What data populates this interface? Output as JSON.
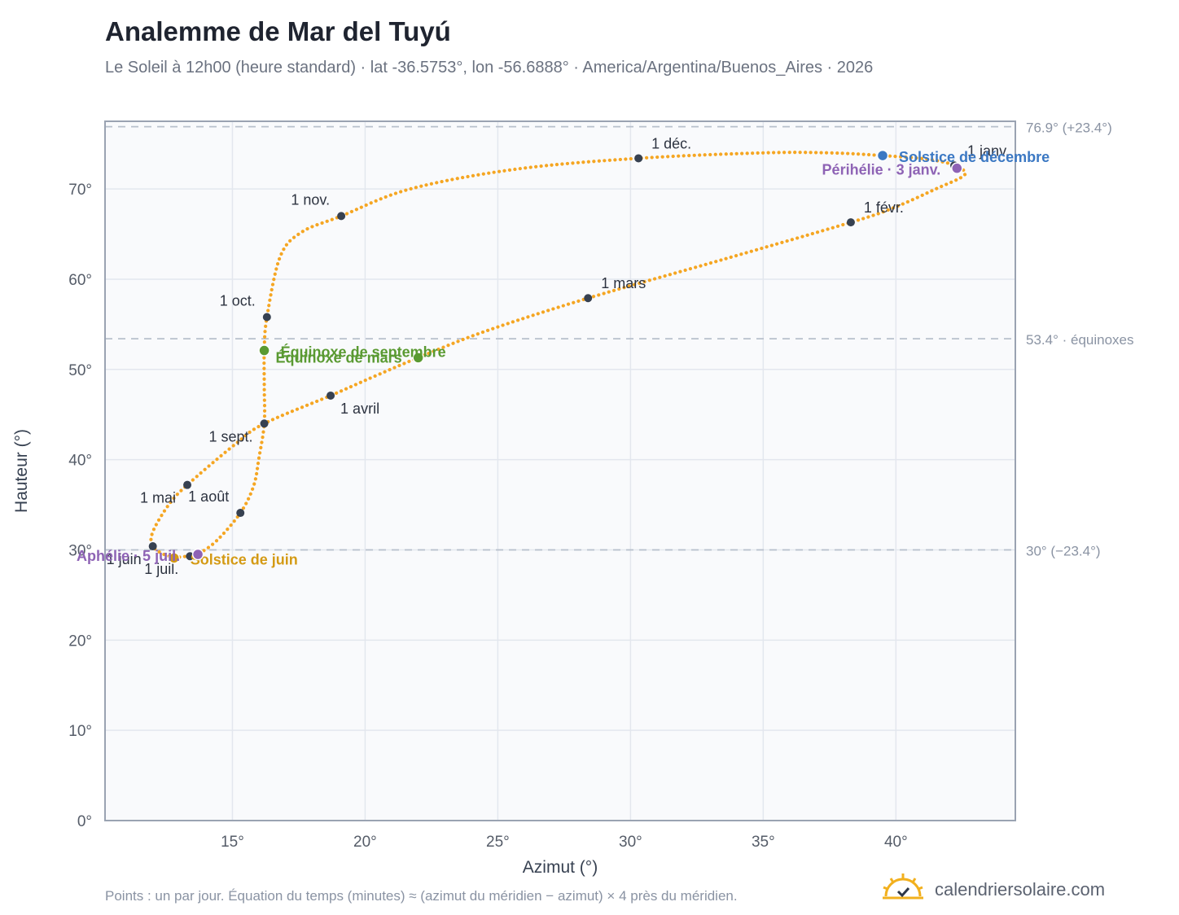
{
  "header": {
    "title": "Analemme de Mar del Tuyú",
    "subtitle": "Le Soleil à 12h00 (heure standard) · lat -36.5753°, lon -56.6888° · America/Argentina/Buenos_Aires · 2026"
  },
  "footer": {
    "note": "Points : un par jour. Équation du temps (minutes) ≈ (azimut du méridien − azimut) × 4 près du méridien.",
    "brand": "calendriersolaire.com"
  },
  "colors": {
    "curve": "#f5a623",
    "month_marker": "#374151",
    "equinox": "#5a9a32",
    "june_solstice": "#d49a14",
    "december_solstice": "#3b78c3",
    "apsis": "#8e63b5",
    "grid": "#e3e7ee",
    "plot_bg": "#f9fafc",
    "frame": "#9aa3b2",
    "reference_line": "#b8c0cc"
  },
  "chart_data": {
    "type": "scatter",
    "title": "Analemme de Mar del Tuyú",
    "xlabel": "Azimut (°)",
    "ylabel": "Hauteur (°)",
    "xlim": [
      10.2,
      44.5
    ],
    "ylim": [
      0,
      77.5
    ],
    "x_ticks": [
      {
        "value": 15,
        "label": "15°"
      },
      {
        "value": 20,
        "label": "20°"
      },
      {
        "value": 25,
        "label": "25°"
      },
      {
        "value": 30,
        "label": "30°"
      },
      {
        "value": 35,
        "label": "35°"
      },
      {
        "value": 40,
        "label": "40°"
      }
    ],
    "y_ticks": [
      {
        "value": 0,
        "label": "0°"
      },
      {
        "value": 10,
        "label": "10°"
      },
      {
        "value": 20,
        "label": "20°"
      },
      {
        "value": 30,
        "label": "30°"
      },
      {
        "value": 40,
        "label": "40°"
      },
      {
        "value": 50,
        "label": "50°"
      },
      {
        "value": 60,
        "label": "60°"
      },
      {
        "value": 70,
        "label": "70°"
      }
    ],
    "grid": true,
    "reference_lines": [
      {
        "y": 76.9,
        "label": "76.9° (+23.4°)"
      },
      {
        "y": 53.4,
        "label": "53.4° · équinoxes"
      },
      {
        "y": 30.0,
        "label": "30° (−23.4°)"
      }
    ],
    "series_path": [
      {
        "x": 42.2,
        "y": 72.7
      },
      {
        "x": 42.6,
        "y": 71.6
      },
      {
        "x": 41.5,
        "y": 70.0
      },
      {
        "x": 39.9,
        "y": 67.9
      },
      {
        "x": 38.3,
        "y": 66.3
      },
      {
        "x": 33.5,
        "y": 62.2
      },
      {
        "x": 28.4,
        "y": 57.9
      },
      {
        "x": 24.5,
        "y": 54.2
      },
      {
        "x": 22.0,
        "y": 51.3
      },
      {
        "x": 20.4,
        "y": 49.3
      },
      {
        "x": 18.7,
        "y": 47.1
      },
      {
        "x": 16.2,
        "y": 44.0
      },
      {
        "x": 15.1,
        "y": 41.7
      },
      {
        "x": 13.3,
        "y": 37.2
      },
      {
        "x": 12.6,
        "y": 35.0
      },
      {
        "x": 12.0,
        "y": 32.0
      },
      {
        "x": 12.0,
        "y": 30.4
      },
      {
        "x": 12.5,
        "y": 29.4
      },
      {
        "x": 13.0,
        "y": 29.2
      },
      {
        "x": 13.3,
        "y": 29.3
      },
      {
        "x": 13.6,
        "y": 29.3
      },
      {
        "x": 13.7,
        "y": 29.5
      },
      {
        "x": 14.4,
        "y": 31.0
      },
      {
        "x": 15.3,
        "y": 34.1
      },
      {
        "x": 15.8,
        "y": 37.1
      },
      {
        "x": 16.0,
        "y": 40.2
      },
      {
        "x": 16.2,
        "y": 44.0
      },
      {
        "x": 16.2,
        "y": 48.1
      },
      {
        "x": 16.2,
        "y": 52.1
      },
      {
        "x": 16.3,
        "y": 55.8
      },
      {
        "x": 16.8,
        "y": 62.5
      },
      {
        "x": 17.6,
        "y": 65.2
      },
      {
        "x": 19.1,
        "y": 67.0
      },
      {
        "x": 21.7,
        "y": 70.0
      },
      {
        "x": 25.7,
        "y": 72.2
      },
      {
        "x": 30.3,
        "y": 73.4
      },
      {
        "x": 35.0,
        "y": 74.0
      },
      {
        "x": 37.5,
        "y": 74.0
      },
      {
        "x": 39.5,
        "y": 73.7
      },
      {
        "x": 41.2,
        "y": 73.3
      },
      {
        "x": 42.2,
        "y": 72.7
      }
    ],
    "month_markers": [
      {
        "label": "1 janv.",
        "x": 42.2,
        "y": 72.6,
        "pos": "above-right"
      },
      {
        "label": "1 févr.",
        "x": 38.3,
        "y": 66.3,
        "pos": "above-right"
      },
      {
        "label": "1 mars",
        "x": 28.4,
        "y": 57.9,
        "pos": "above-right"
      },
      {
        "label": "1 avril",
        "x": 18.7,
        "y": 47.1,
        "pos": "below-right"
      },
      {
        "label": "1 mai",
        "x": 13.3,
        "y": 37.2,
        "pos": "below-left"
      },
      {
        "label": "1 juin",
        "x": 12.0,
        "y": 30.4,
        "pos": "below-left"
      },
      {
        "label": "1 juil.",
        "x": 13.4,
        "y": 29.3,
        "pos": "below-left"
      },
      {
        "label": "1 août",
        "x": 15.3,
        "y": 34.1,
        "pos": "above-left"
      },
      {
        "label": "1 sept.",
        "x": 16.2,
        "y": 44.0,
        "pos": "below-left"
      },
      {
        "label": "1 oct.",
        "x": 16.3,
        "y": 55.8,
        "pos": "above-left"
      },
      {
        "label": "1 nov.",
        "x": 19.1,
        "y": 67.0,
        "pos": "above-left"
      },
      {
        "label": "1 déc.",
        "x": 30.3,
        "y": 73.4,
        "pos": "above-right"
      }
    ],
    "events": [
      {
        "label": "Équinoxe de mars",
        "x": 22.0,
        "y": 51.3,
        "color_key": "equinox",
        "anchor": "end",
        "dx": -20,
        "dy": 6
      },
      {
        "label": "Équinoxe de septembre",
        "x": 16.2,
        "y": 52.1,
        "color_key": "equinox",
        "anchor": "start",
        "dx": 20,
        "dy": 8
      },
      {
        "label": "Solstice de juin",
        "x": 12.8,
        "y": 29.1,
        "color_key": "june_solstice",
        "anchor": "start",
        "dx": 20,
        "dy": 8
      },
      {
        "label": "Solstice de décembre",
        "x": 39.5,
        "y": 73.7,
        "color_key": "december_solstice",
        "anchor": "start",
        "dx": 20,
        "dy": 8
      },
      {
        "label": "Périhélie · 3 janv.",
        "x": 42.3,
        "y": 72.3,
        "color_key": "apsis",
        "anchor": "end",
        "dx": -20,
        "dy": 8
      },
      {
        "label": "Aphélie · 5 juil.",
        "x": 13.7,
        "y": 29.5,
        "color_key": "apsis",
        "anchor": "end",
        "dx": -22,
        "dy": 8
      }
    ]
  }
}
